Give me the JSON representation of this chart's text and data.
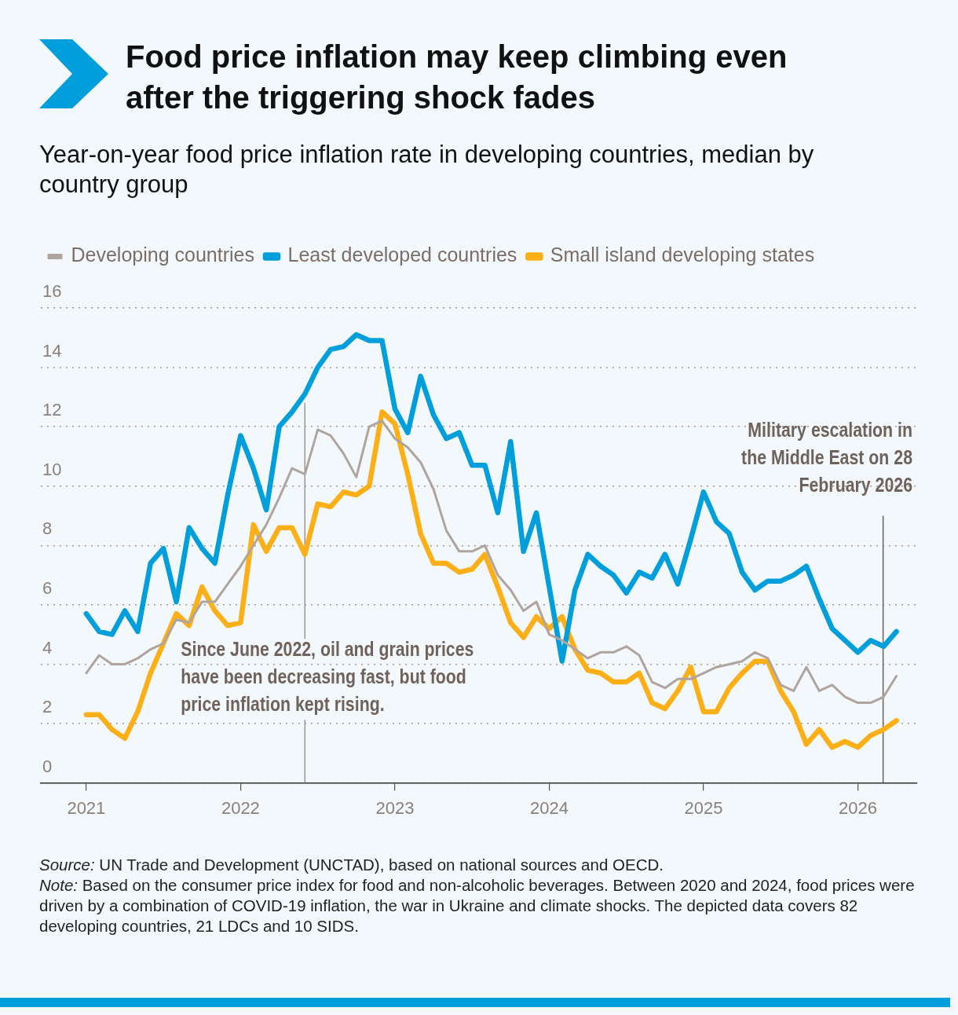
{
  "chart_data": {
    "type": "line",
    "title": "Food price inflation may keep climbing even after the triggering shock fades",
    "subtitle": "Year-on-year food price inflation rate in developing countries, median by country group",
    "x": [
      "2021-01",
      "2021-02",
      "2021-03",
      "2021-04",
      "2021-05",
      "2021-06",
      "2021-07",
      "2021-08",
      "2021-09",
      "2021-10",
      "2021-11",
      "2021-12",
      "2022-01",
      "2022-02",
      "2022-03",
      "2022-04",
      "2022-05",
      "2022-06",
      "2022-07",
      "2022-08",
      "2022-09",
      "2022-10",
      "2022-11",
      "2022-12",
      "2023-01",
      "2023-02",
      "2023-03",
      "2023-04",
      "2023-05",
      "2023-06",
      "2023-07",
      "2023-08",
      "2023-09",
      "2023-10",
      "2023-11",
      "2023-12",
      "2024-01",
      "2024-02",
      "2024-03",
      "2024-04",
      "2024-05",
      "2024-06",
      "2024-07",
      "2024-08",
      "2024-09",
      "2024-10",
      "2024-11",
      "2024-12",
      "2025-01",
      "2025-02",
      "2025-03",
      "2025-04",
      "2025-05",
      "2025-06",
      "2025-07",
      "2025-08",
      "2025-09",
      "2025-10",
      "2025-11",
      "2025-12",
      "2026-01",
      "2026-02",
      "2026-03",
      "2026-04"
    ],
    "xlim": [
      "2020-09-15",
      "2026-05-20"
    ],
    "xticks": [
      "2021",
      "2022",
      "2023",
      "2024",
      "2025",
      "2026"
    ],
    "ylim": [
      0,
      16
    ],
    "yticks": [
      0,
      2,
      4,
      6,
      8,
      10,
      12,
      14,
      16
    ],
    "grid": "y",
    "legend": "top left",
    "marker": "none",
    "series": [
      {
        "name": "Developing countries",
        "color": "#b0a59e",
        "values": [
          3.7,
          4.3,
          4.0,
          4.0,
          4.2,
          4.5,
          4.7,
          5.5,
          5.4,
          6.1,
          6.1,
          6.7,
          7.3,
          8.0,
          8.7,
          9.6,
          10.6,
          10.4,
          11.9,
          11.7,
          11.1,
          10.3,
          12.0,
          12.2,
          11.6,
          11.3,
          10.8,
          9.9,
          8.5,
          7.8,
          7.8,
          8.0,
          7.0,
          6.5,
          5.8,
          6.1,
          5.0,
          4.8,
          4.5,
          4.2,
          4.4,
          4.4,
          4.6,
          4.3,
          3.4,
          3.2,
          3.5,
          3.5,
          3.7,
          3.9,
          4.0,
          4.1,
          4.4,
          4.2,
          3.3,
          3.1,
          3.9,
          3.1,
          3.3,
          2.9,
          2.7,
          2.7,
          2.9,
          3.6
        ]
      },
      {
        "name": "Least developed countries",
        "color": "#009edb",
        "values": [
          5.7,
          5.1,
          5.0,
          5.8,
          5.1,
          7.4,
          7.9,
          6.1,
          8.6,
          7.9,
          7.4,
          9.7,
          11.7,
          10.6,
          9.2,
          12.0,
          12.5,
          13.1,
          14.0,
          14.6,
          14.7,
          15.1,
          14.9,
          14.9,
          12.6,
          11.8,
          13.7,
          12.4,
          11.6,
          11.8,
          10.7,
          10.7,
          9.1,
          11.5,
          7.8,
          9.1,
          6.6,
          4.1,
          6.5,
          7.7,
          7.3,
          7.0,
          6.4,
          7.1,
          6.9,
          7.7,
          6.7,
          8.2,
          9.8,
          8.8,
          8.4,
          7.1,
          6.5,
          6.8,
          6.8,
          7.0,
          7.3,
          6.2,
          5.2,
          4.8,
          4.4,
          4.8,
          4.6,
          5.1
        ]
      },
      {
        "name": "Small island developing states",
        "color": "#fcaf17",
        "values": [
          2.3,
          2.3,
          1.8,
          1.5,
          2.4,
          3.7,
          4.7,
          5.7,
          5.3,
          6.6,
          5.8,
          5.3,
          5.4,
          8.7,
          7.8,
          8.6,
          8.6,
          7.7,
          9.4,
          9.3,
          9.8,
          9.7,
          10.0,
          12.5,
          12.1,
          10.4,
          8.4,
          7.4,
          7.4,
          7.1,
          7.2,
          7.7,
          6.6,
          5.4,
          4.9,
          5.6,
          5.2,
          5.6,
          4.5,
          3.8,
          3.7,
          3.4,
          3.4,
          3.7,
          2.7,
          2.5,
          3.1,
          3.9,
          2.4,
          2.4,
          3.2,
          3.7,
          4.1,
          4.1,
          3.1,
          2.4,
          1.3,
          1.8,
          1.2,
          1.4,
          1.2,
          1.6,
          1.8,
          2.1
        ]
      }
    ],
    "ref_lines": [
      {
        "axis": "x",
        "value": "2022-06",
        "label": "Since June 2022, oil and grain prices have been decreasing fast, but food price inflation kept rising.",
        "color": "#a0958e"
      },
      {
        "axis": "x",
        "value": "2026-02-28",
        "label": "Military escalation in the Middle East on 28 February 2026",
        "color": "#6e625a"
      }
    ],
    "annotations": [
      "Source: UN Trade and Development (UNCTAD), based on national sources and OECD.",
      "Note: Based on the consumer price index for food and non-alcoholic beverages. Between 2020 and 2024, food prices were driven by a combination of COVID-19 inflation, the war in Ukraine and climate shocks. The depicted data covers 82 developing countries, 21 LDCs and 10 SIDS."
    ]
  }
}
